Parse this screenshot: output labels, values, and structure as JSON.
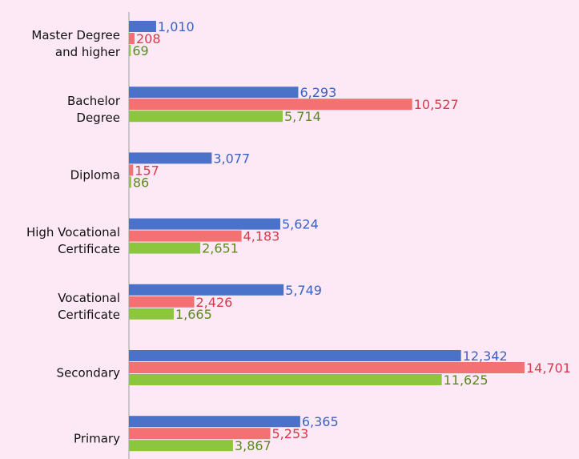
{
  "chart_data": {
    "type": "bar",
    "orientation": "horizontal",
    "categories": [
      "Master Degree\nand higher",
      "Bachelor\nDegree",
      "Diploma",
      "High Vocational\nCertificate",
      "Vocational\nCertificate",
      "Secondary",
      "Primary"
    ],
    "series": [
      {
        "color": "#4a72c8",
        "label_color": "#3a62c0",
        "values": [
          1010,
          6293,
          3077,
          5624,
          5749,
          12342,
          6365
        ],
        "value_labels": [
          "1,010",
          "6,293",
          "3,077",
          "5,624",
          "5,749",
          "12,342",
          "6,365"
        ]
      },
      {
        "color": "#f47173",
        "label_color": "#d83a48",
        "values": [
          208,
          10527,
          157,
          4183,
          2426,
          14701,
          5253
        ],
        "value_labels": [
          "208",
          "10,527",
          "157",
          "4,183",
          "2,426",
          "14,701",
          "5,253"
        ]
      },
      {
        "color": "#8cc63f",
        "label_color": "#5a8a1f",
        "values": [
          69,
          5714,
          86,
          2651,
          1665,
          11625,
          3867
        ],
        "value_labels": [
          "69",
          "5,714",
          "86",
          "2,651",
          "1,665",
          "11,625",
          "3,867"
        ]
      }
    ],
    "xlim": [
      0,
      15000
    ]
  }
}
